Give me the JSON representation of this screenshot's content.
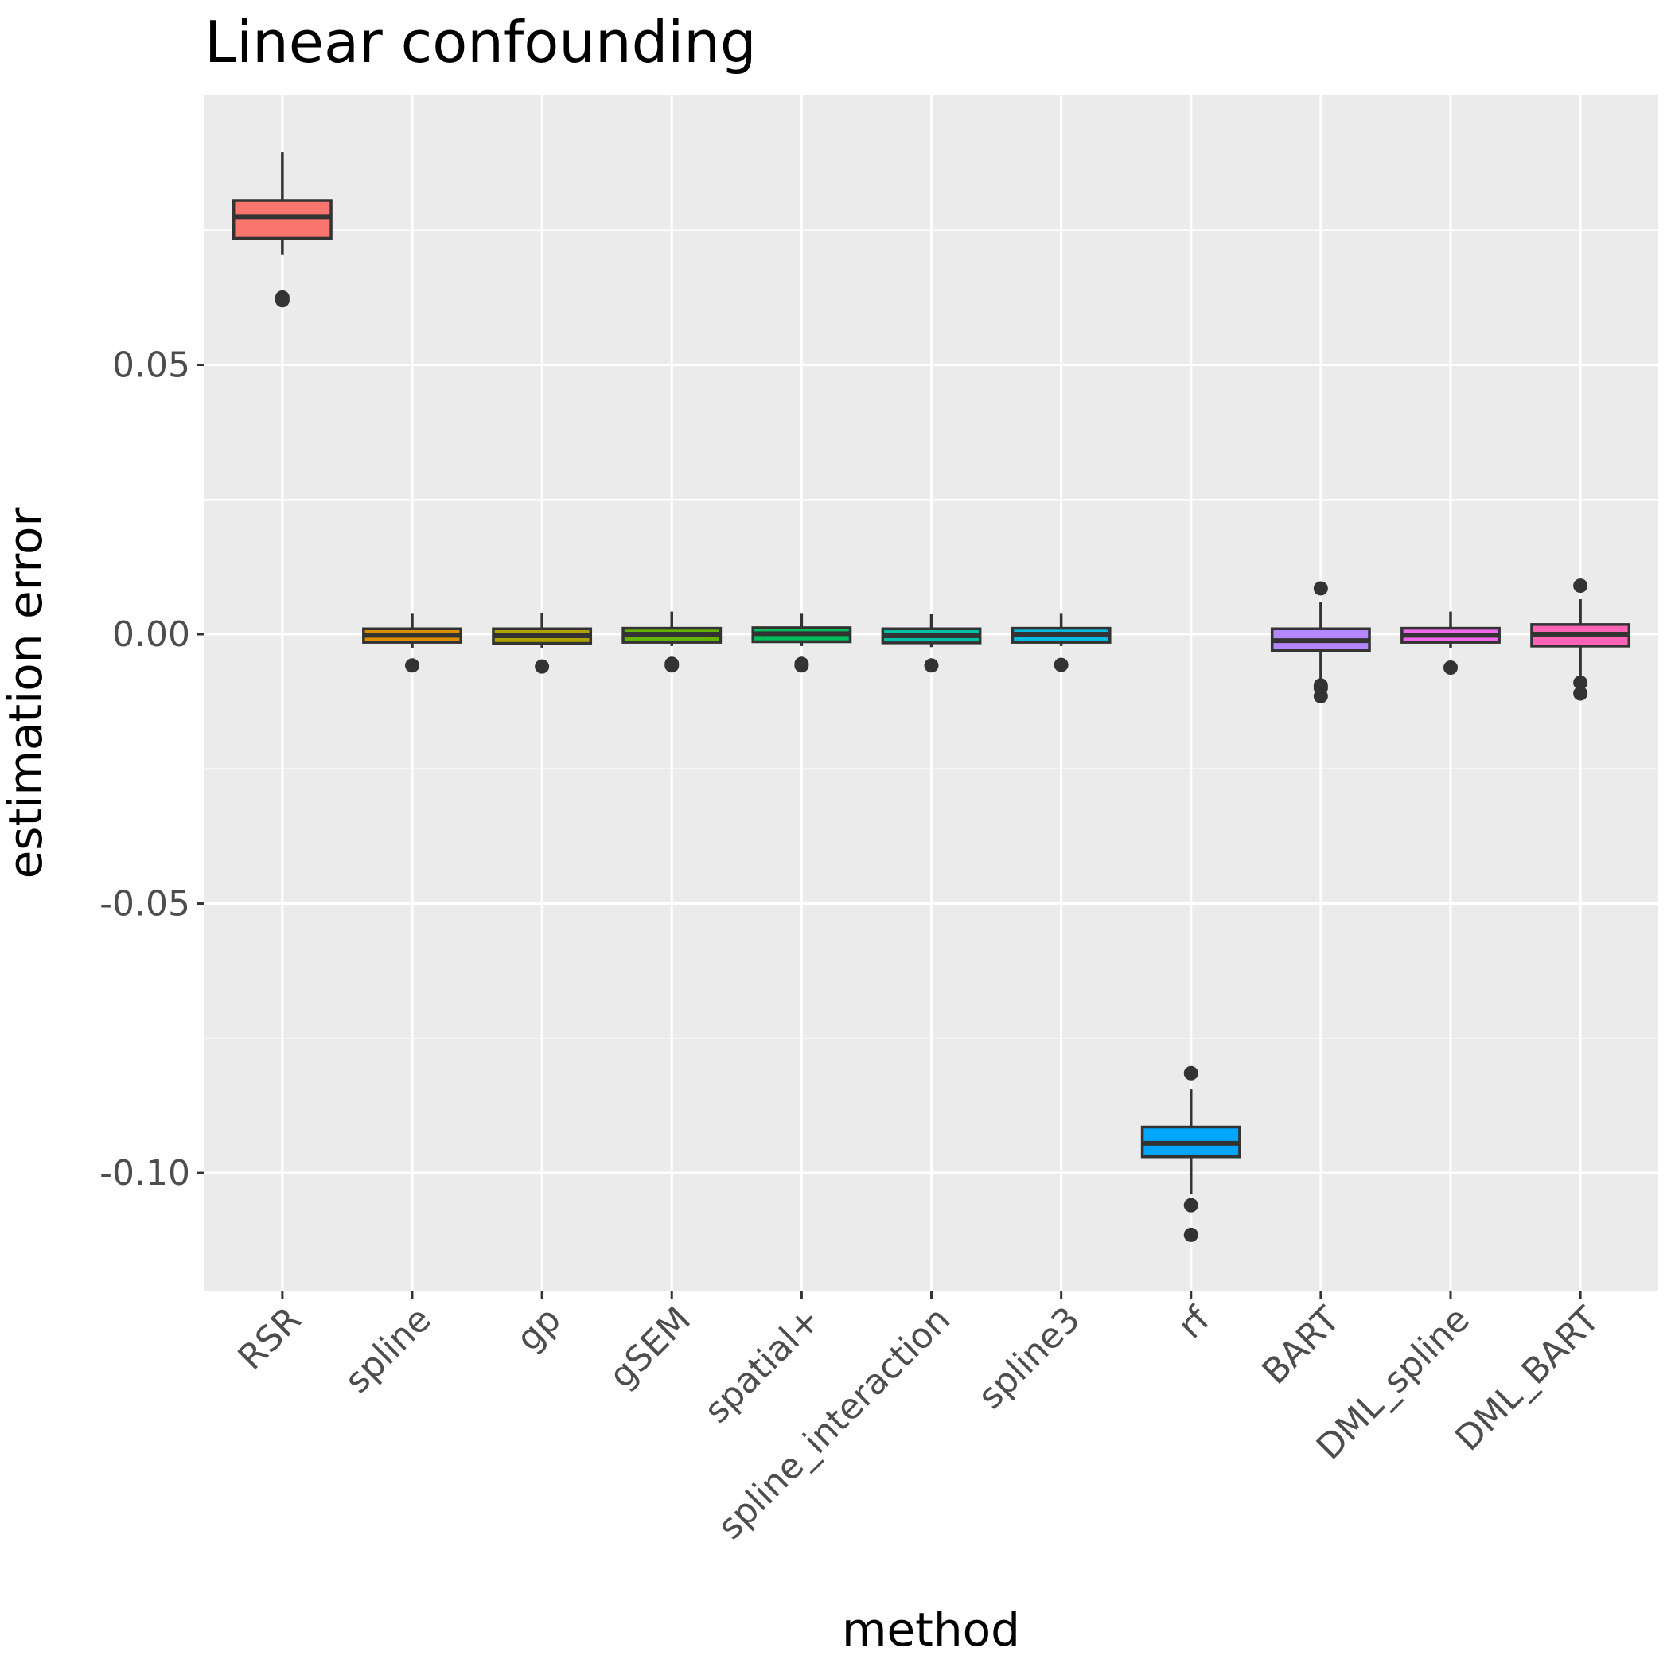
{
  "chart_data": {
    "type": "boxplot",
    "title": "Linear confounding",
    "xlabel": "method",
    "ylabel": "estimation error",
    "ylim": [
      -0.122,
      0.1
    ],
    "y_ticks": [
      -0.1,
      -0.05,
      0.0,
      0.05
    ],
    "y_tick_labels": [
      "-0.10",
      "-0.05",
      "0.00",
      "0.05"
    ],
    "grid": true,
    "legend": "none",
    "categories": [
      "RSR",
      "spline",
      "gp",
      "gSEM",
      "spatial+",
      "spline_interaction",
      "spline3",
      "rf",
      "BART",
      "DML_spline",
      "DML_BART"
    ],
    "boxes": [
      {
        "method": "RSR",
        "color": "#F8766D",
        "lower_whisker": 0.0705,
        "q1": 0.0735,
        "median": 0.0775,
        "q3": 0.0805,
        "upper_whisker": 0.0895,
        "outliers": [
          0.0625,
          0.062
        ]
      },
      {
        "method": "spline",
        "color": "#DB8E00",
        "lower_whisker": -0.0025,
        "q1": -0.0015,
        "median": -0.0002,
        "q3": 0.001,
        "upper_whisker": 0.0038,
        "outliers": [
          -0.0058
        ]
      },
      {
        "method": "gp",
        "color": "#AEA200",
        "lower_whisker": -0.0025,
        "q1": -0.0017,
        "median": -0.0003,
        "q3": 0.001,
        "upper_whisker": 0.004,
        "outliers": [
          -0.006
        ]
      },
      {
        "method": "gSEM",
        "color": "#64B200",
        "lower_whisker": -0.0022,
        "q1": -0.0015,
        "median": 0.0,
        "q3": 0.0011,
        "upper_whisker": 0.0042,
        "outliers": [
          -0.0055,
          -0.0058
        ]
      },
      {
        "method": "spatial+",
        "color": "#00BD5C",
        "lower_whisker": -0.0022,
        "q1": -0.0014,
        "median": 0.0001,
        "q3": 0.0012,
        "upper_whisker": 0.0038,
        "outliers": [
          -0.0055,
          -0.0058
        ]
      },
      {
        "method": "spline_interaction",
        "color": "#00C1A7",
        "lower_whisker": -0.0024,
        "q1": -0.0016,
        "median": -0.0003,
        "q3": 0.001,
        "upper_whisker": 0.0037,
        "outliers": [
          -0.0058
        ]
      },
      {
        "method": "spline3",
        "color": "#00BADE",
        "lower_whisker": -0.0022,
        "q1": -0.0015,
        "median": 0.0,
        "q3": 0.0011,
        "upper_whisker": 0.0038,
        "outliers": [
          -0.0057
        ]
      },
      {
        "method": "rf",
        "color": "#00A6FF",
        "lower_whisker": -0.104,
        "q1": -0.097,
        "median": -0.0945,
        "q3": -0.0915,
        "upper_whisker": -0.0845,
        "outliers": [
          -0.0815,
          -0.106,
          -0.1115
        ]
      },
      {
        "method": "BART",
        "color": "#B385FF",
        "lower_whisker": -0.0085,
        "q1": -0.003,
        "median": -0.0012,
        "q3": 0.001,
        "upper_whisker": 0.006,
        "outliers": [
          0.0085,
          -0.0095,
          -0.01,
          -0.0115
        ]
      },
      {
        "method": "DML_spline",
        "color": "#EF67EB",
        "lower_whisker": -0.0025,
        "q1": -0.0015,
        "median": -0.0002,
        "q3": 0.0011,
        "upper_whisker": 0.0042,
        "outliers": [
          -0.0062
        ]
      },
      {
        "method": "DML_BART",
        "color": "#FF63B6",
        "lower_whisker": -0.008,
        "q1": -0.0022,
        "median": 0.0,
        "q3": 0.0018,
        "upper_whisker": 0.0065,
        "outliers": [
          0.009,
          -0.009,
          -0.011
        ]
      }
    ]
  }
}
